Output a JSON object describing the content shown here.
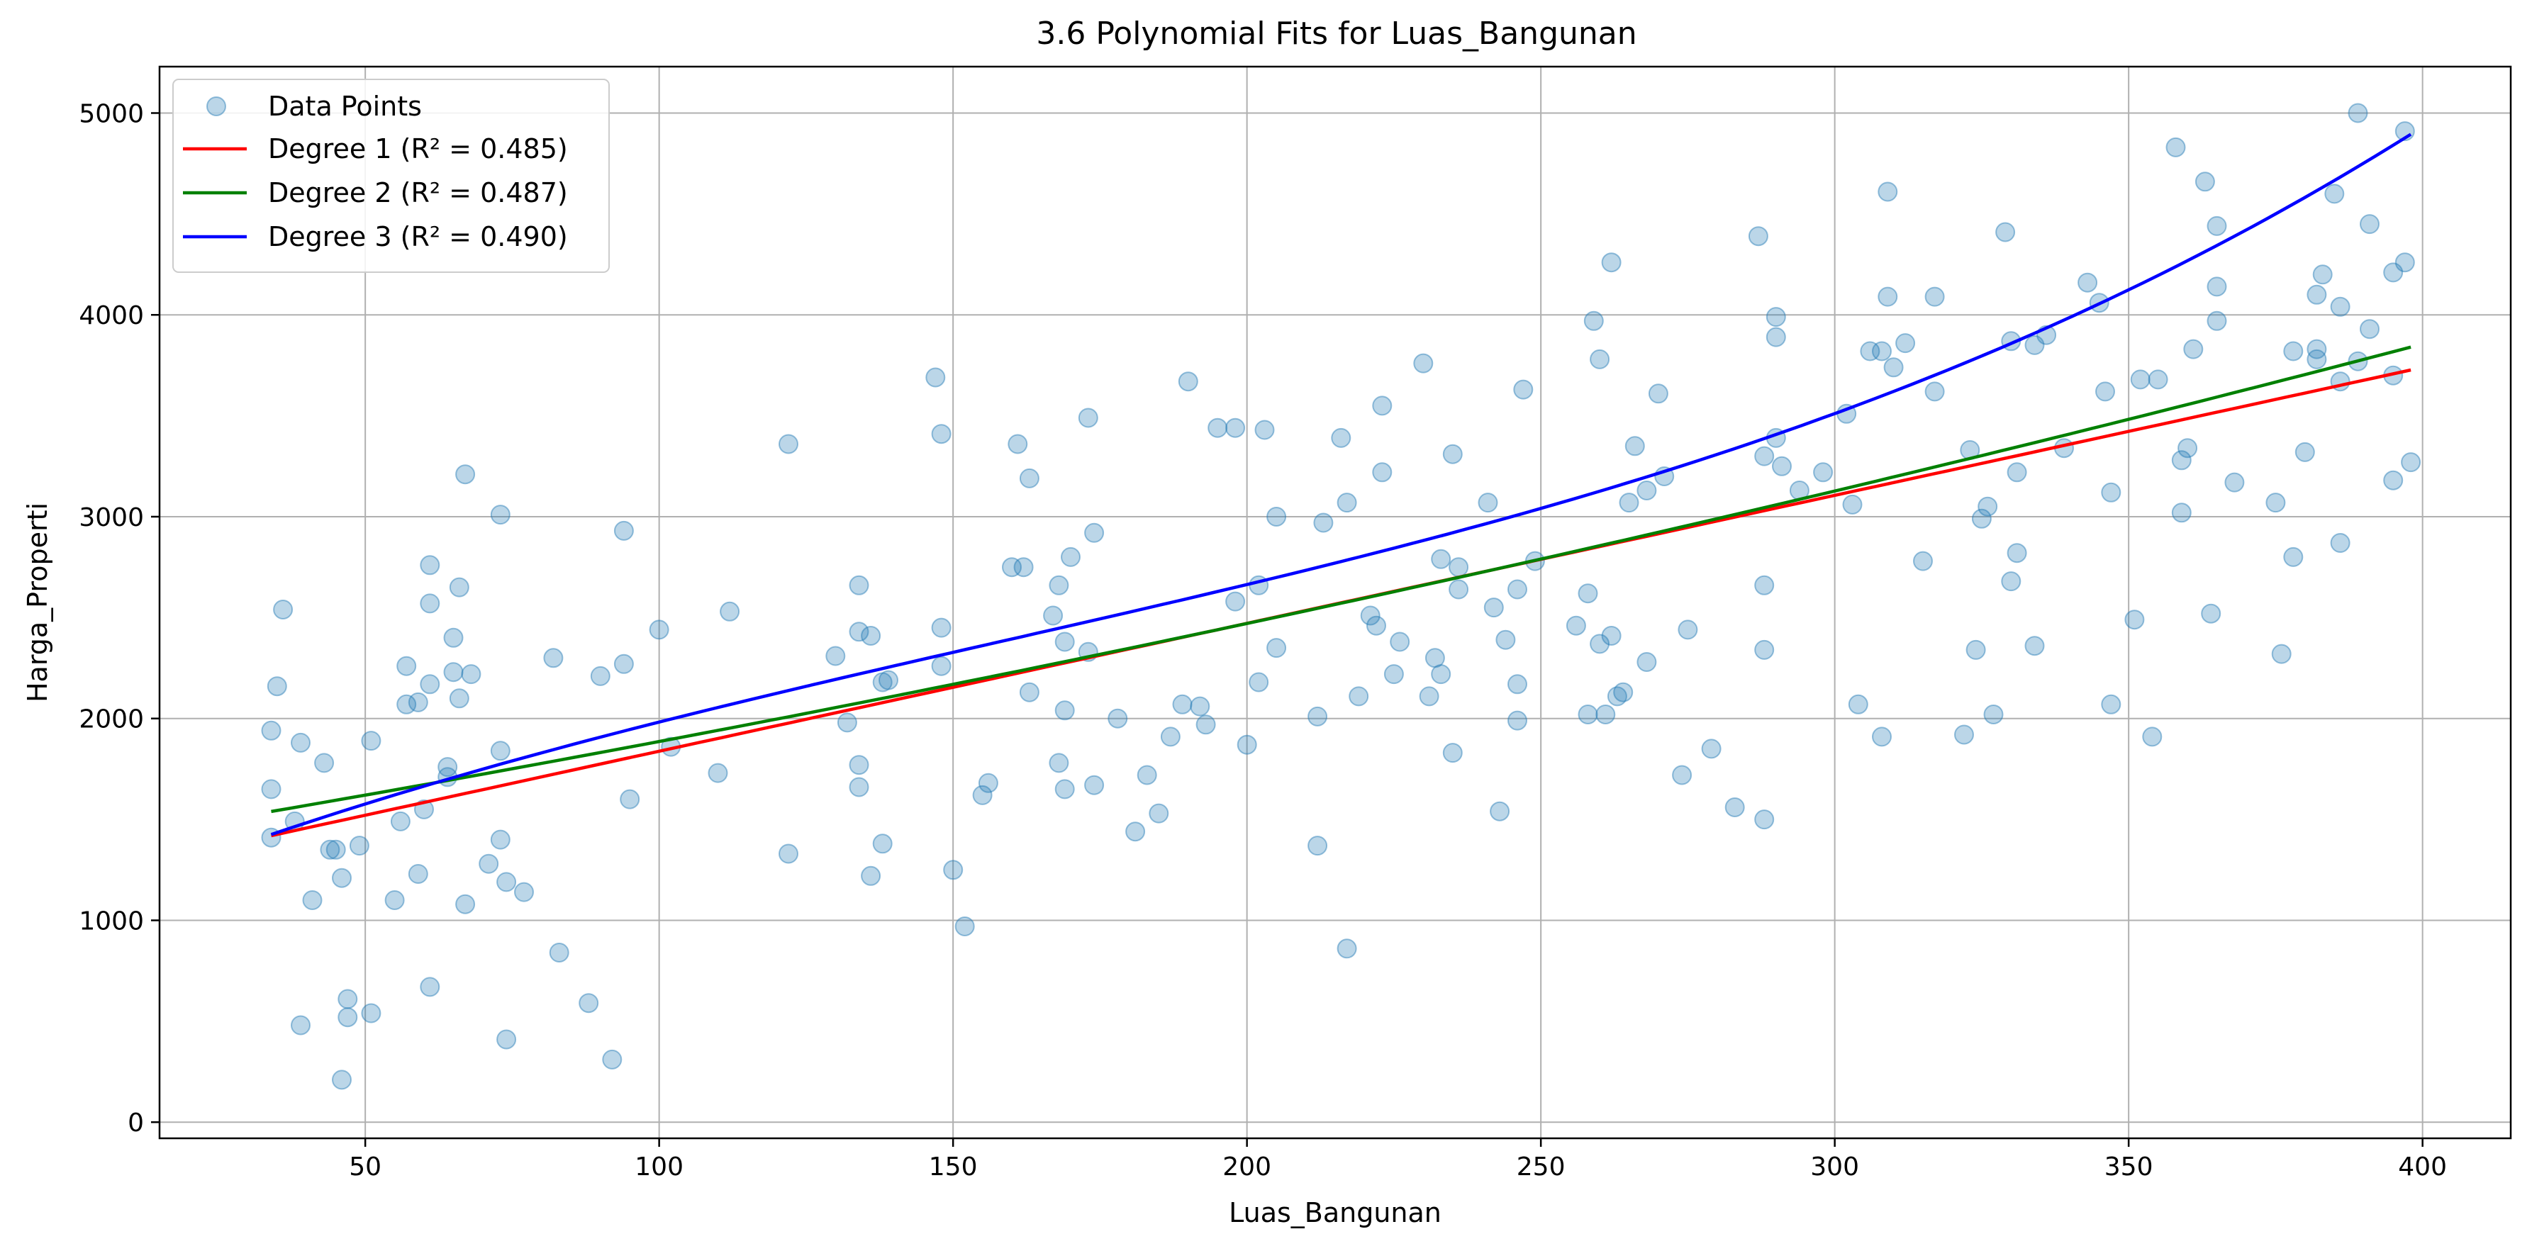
{
  "chart_data": {
    "type": "scatter",
    "title": "3.6 Polynomial Fits for Luas_Bangunan",
    "xlabel": "Luas_Bangunan",
    "ylabel": "Harga_Properti",
    "xlim": [
      15,
      415
    ],
    "ylim": [
      -80,
      5230
    ],
    "xticks": [
      50,
      100,
      150,
      200,
      250,
      300,
      350,
      400
    ],
    "yticks": [
      0,
      1000,
      2000,
      3000,
      4000,
      5000
    ],
    "grid": true,
    "legend_position": "top-left",
    "scatter": {
      "name": "Data Points",
      "color": "#1f77b4",
      "points": [
        [
          34,
          1940
        ],
        [
          34,
          1650
        ],
        [
          34,
          1410
        ],
        [
          35,
          2160
        ],
        [
          36,
          2540
        ],
        [
          38,
          1490
        ],
        [
          39,
          1880
        ],
        [
          39,
          480
        ],
        [
          41,
          1100
        ],
        [
          43,
          1780
        ],
        [
          44,
          1350
        ],
        [
          45,
          1350
        ],
        [
          46,
          210
        ],
        [
          46,
          1210
        ],
        [
          47,
          520
        ],
        [
          47,
          610
        ],
        [
          49,
          1370
        ],
        [
          51,
          540
        ],
        [
          51,
          1890
        ],
        [
          55,
          1100
        ],
        [
          56,
          1490
        ],
        [
          57,
          2260
        ],
        [
          57,
          2070
        ],
        [
          59,
          2080
        ],
        [
          59,
          1230
        ],
        [
          60,
          1550
        ],
        [
          61,
          2570
        ],
        [
          61,
          2760
        ],
        [
          61,
          2170
        ],
        [
          61,
          670
        ],
        [
          64,
          1760
        ],
        [
          64,
          1710
        ],
        [
          65,
          2400
        ],
        [
          65,
          2230
        ],
        [
          66,
          2650
        ],
        [
          66,
          2100
        ],
        [
          67,
          3210
        ],
        [
          67,
          1080
        ],
        [
          68,
          2220
        ],
        [
          71,
          1280
        ],
        [
          73,
          3010
        ],
        [
          73,
          1840
        ],
        [
          73,
          1400
        ],
        [
          74,
          1190
        ],
        [
          74,
          410
        ],
        [
          77,
          1140
        ],
        [
          82,
          2300
        ],
        [
          83,
          840
        ],
        [
          88,
          590
        ],
        [
          90,
          2210
        ],
        [
          92,
          310
        ],
        [
          94,
          2270
        ],
        [
          94,
          2930
        ],
        [
          95,
          1600
        ],
        [
          100,
          2440
        ],
        [
          102,
          1860
        ],
        [
          110,
          1730
        ],
        [
          112,
          2530
        ],
        [
          122,
          1330
        ],
        [
          122,
          3360
        ],
        [
          130,
          2310
        ],
        [
          132,
          1980
        ],
        [
          134,
          1660
        ],
        [
          134,
          1770
        ],
        [
          134,
          2660
        ],
        [
          134,
          2430
        ],
        [
          136,
          1220
        ],
        [
          136,
          2410
        ],
        [
          138,
          2180
        ],
        [
          138,
          1380
        ],
        [
          139,
          2190
        ],
        [
          147,
          3690
        ],
        [
          148,
          2450
        ],
        [
          148,
          2260
        ],
        [
          148,
          3410
        ],
        [
          150,
          1250
        ],
        [
          152,
          970
        ],
        [
          155,
          1620
        ],
        [
          156,
          1680
        ],
        [
          160,
          2750
        ],
        [
          161,
          3360
        ],
        [
          162,
          2750
        ],
        [
          163,
          2130
        ],
        [
          163,
          3190
        ],
        [
          167,
          2510
        ],
        [
          168,
          1780
        ],
        [
          168,
          2660
        ],
        [
          169,
          2040
        ],
        [
          169,
          2380
        ],
        [
          169,
          1650
        ],
        [
          170,
          2800
        ],
        [
          173,
          3490
        ],
        [
          173,
          2330
        ],
        [
          174,
          1670
        ],
        [
          174,
          2920
        ],
        [
          178,
          2000
        ],
        [
          181,
          1440
        ],
        [
          183,
          1720
        ],
        [
          185,
          1530
        ],
        [
          187,
          1910
        ],
        [
          189,
          2070
        ],
        [
          190,
          3670
        ],
        [
          192,
          2060
        ],
        [
          193,
          1970
        ],
        [
          195,
          3440
        ],
        [
          198,
          3440
        ],
        [
          198,
          2580
        ],
        [
          200,
          1870
        ],
        [
          202,
          2660
        ],
        [
          202,
          2180
        ],
        [
          203,
          3430
        ],
        [
          205,
          3000
        ],
        [
          205,
          2350
        ],
        [
          212,
          2010
        ],
        [
          212,
          1370
        ],
        [
          213,
          2970
        ],
        [
          216,
          3390
        ],
        [
          217,
          3070
        ],
        [
          217,
          860
        ],
        [
          219,
          2110
        ],
        [
          221,
          2510
        ],
        [
          222,
          2460
        ],
        [
          223,
          3220
        ],
        [
          223,
          3550
        ],
        [
          225,
          2220
        ],
        [
          226,
          2380
        ],
        [
          230,
          3760
        ],
        [
          231,
          2110
        ],
        [
          232,
          2300
        ],
        [
          233,
          2790
        ],
        [
          233,
          2220
        ],
        [
          235,
          1830
        ],
        [
          235,
          3310
        ],
        [
          236,
          2640
        ],
        [
          236,
          2750
        ],
        [
          241,
          3070
        ],
        [
          242,
          2550
        ],
        [
          243,
          1540
        ],
        [
          244,
          2390
        ],
        [
          246,
          2640
        ],
        [
          246,
          1990
        ],
        [
          246,
          2170
        ],
        [
          247,
          3630
        ],
        [
          249,
          2780
        ],
        [
          256,
          2460
        ],
        [
          258,
          2620
        ],
        [
          258,
          2020
        ],
        [
          259,
          3970
        ],
        [
          260,
          3780
        ],
        [
          260,
          2370
        ],
        [
          261,
          2020
        ],
        [
          262,
          2410
        ],
        [
          262,
          4260
        ],
        [
          263,
          2110
        ],
        [
          264,
          2130
        ],
        [
          265,
          3070
        ],
        [
          266,
          3350
        ],
        [
          268,
          3130
        ],
        [
          268,
          2280
        ],
        [
          270,
          3610
        ],
        [
          271,
          3200
        ],
        [
          274,
          1720
        ],
        [
          275,
          2440
        ],
        [
          279,
          1850
        ],
        [
          283,
          1560
        ],
        [
          287,
          4390
        ],
        [
          288,
          3300
        ],
        [
          288,
          2660
        ],
        [
          288,
          2340
        ],
        [
          288,
          1500
        ],
        [
          290,
          3390
        ],
        [
          290,
          3990
        ],
        [
          290,
          3890
        ],
        [
          291,
          3250
        ],
        [
          294,
          3130
        ],
        [
          298,
          3220
        ],
        [
          302,
          3510
        ],
        [
          303,
          3060
        ],
        [
          304,
          2070
        ],
        [
          306,
          3820
        ],
        [
          308,
          3820
        ],
        [
          308,
          1910
        ],
        [
          309,
          4610
        ],
        [
          309,
          4090
        ],
        [
          310,
          3740
        ],
        [
          312,
          3860
        ],
        [
          315,
          2780
        ],
        [
          317,
          3620
        ],
        [
          317,
          4090
        ],
        [
          322,
          1920
        ],
        [
          323,
          3330
        ],
        [
          324,
          2340
        ],
        [
          325,
          2990
        ],
        [
          326,
          3050
        ],
        [
          327,
          2020
        ],
        [
          329,
          4410
        ],
        [
          330,
          3870
        ],
        [
          330,
          2680
        ],
        [
          331,
          3220
        ],
        [
          331,
          2820
        ],
        [
          334,
          3850
        ],
        [
          334,
          2360
        ],
        [
          336,
          3900
        ],
        [
          339,
          3340
        ],
        [
          343,
          4160
        ],
        [
          345,
          4060
        ],
        [
          346,
          3620
        ],
        [
          347,
          3120
        ],
        [
          347,
          2070
        ],
        [
          351,
          2490
        ],
        [
          352,
          3680
        ],
        [
          354,
          1910
        ],
        [
          355,
          3680
        ],
        [
          358,
          4830
        ],
        [
          359,
          3020
        ],
        [
          359,
          3280
        ],
        [
          360,
          3340
        ],
        [
          361,
          3830
        ],
        [
          363,
          4660
        ],
        [
          364,
          2520
        ],
        [
          365,
          4440
        ],
        [
          365,
          4140
        ],
        [
          365,
          3970
        ],
        [
          368,
          3170
        ],
        [
          375,
          3070
        ],
        [
          376,
          2320
        ],
        [
          378,
          3820
        ],
        [
          378,
          2800
        ],
        [
          380,
          3320
        ],
        [
          382,
          3830
        ],
        [
          382,
          3780
        ],
        [
          382,
          4100
        ],
        [
          383,
          4200
        ],
        [
          385,
          4600
        ],
        [
          386,
          4040
        ],
        [
          386,
          3670
        ],
        [
          386,
          2870
        ],
        [
          389,
          5000
        ],
        [
          389,
          3770
        ],
        [
          391,
          4450
        ],
        [
          391,
          3930
        ],
        [
          395,
          3700
        ],
        [
          395,
          3180
        ],
        [
          395,
          4210
        ],
        [
          397,
          4910
        ],
        [
          397,
          4260
        ],
        [
          398,
          3270
        ]
      ]
    },
    "fits": [
      {
        "name": "Degree 1 (R² = 0.485)",
        "color": "#ff0000",
        "degree": 1,
        "coefficients": [
          1203.86,
          6.3392
        ]
      },
      {
        "name": "Degree 2 (R² = 0.487)",
        "color": "#008000",
        "degree": 2,
        "coefficients": [
          1372.92,
          4.7722,
          0.0035864
        ]
      },
      {
        "name": "Degree 3 (R² = 0.490)",
        "color": "#0000ff",
        "degree": 3,
        "coefficients": [
          1058.92,
          11.8017,
          -0.032475,
          6.7935e-05
        ]
      }
    ],
    "x_range": [
      34,
      398
    ]
  }
}
